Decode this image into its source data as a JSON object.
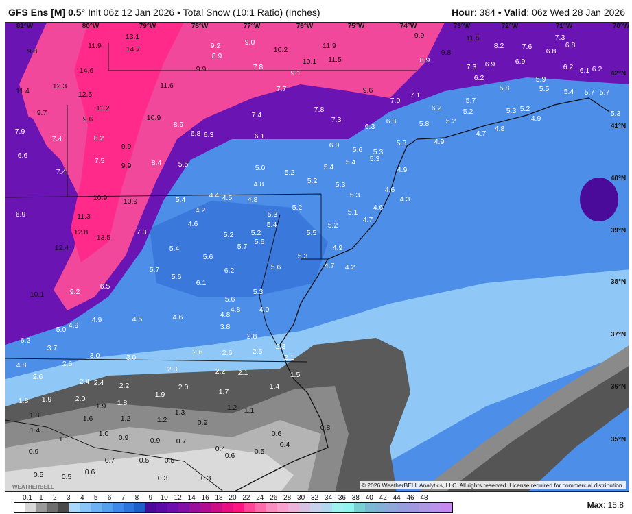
{
  "header": {
    "model": "GFS Ens [M] 0.5",
    "degree": "°",
    "init": " Init 06z 12 Jan 2026 • Total Snow (10:1 Ratio) (Inches)",
    "hour_label": "Hour",
    "hour_value": ": 384 • ",
    "valid_label": "Valid",
    "valid_value": ": 06z Wed 28 Jan 2026"
  },
  "map": {
    "longitudes": [
      "81°W",
      "80°W",
      "79°W",
      "78°W",
      "77°W",
      "76°W",
      "75°W",
      "74°W",
      "73°W",
      "72°W",
      "71°W",
      "70°W"
    ],
    "latitudes": [
      "42°N",
      "41°N",
      "40°N",
      "39°N",
      "38°N",
      "37°N",
      "36°N",
      "35°N"
    ],
    "snow_values": [
      "9.8",
      "11.9",
      "13.1",
      "14.7",
      "9.2",
      "8.9",
      "9.0",
      "10.2",
      "11.9",
      "11.5",
      "9.9",
      "11.5",
      "9.8",
      "8.9",
      "8.2",
      "7.6",
      "7.3",
      "6.8",
      "6.8",
      "6.9",
      "7.3",
      "6.9",
      "6.2",
      "6.1",
      "6.2",
      "14.6",
      "9.9",
      "7.8",
      "9.1",
      "10.1",
      "11.4",
      "12.3",
      "12.5",
      "11.6",
      "7.7",
      "9.6",
      "7.0",
      "7.1",
      "6.2",
      "5.8",
      "5.9",
      "5.5",
      "5.4",
      "5.7",
      "5.7",
      "5.7",
      "5.3",
      "9.7",
      "11.2",
      "9.6",
      "10.9",
      "8.9",
      "7.4",
      "7.8",
      "7.3",
      "6.2",
      "5.2",
      "5.2",
      "5.3",
      "5.2",
      "4.9",
      "5.8",
      "4.8",
      "4.7",
      "4.9",
      "6.3",
      "6.3",
      "7.9",
      "7.4",
      "8.2",
      "6.8",
      "6.3",
      "6.1",
      "6.0",
      "5.6",
      "5.3",
      "5.3",
      "5.4",
      "5.3",
      "6.6",
      "7.5",
      "9.9",
      "9.9",
      "8.4",
      "5.5",
      "7.4",
      "5.0",
      "5.2",
      "5.4",
      "4.9",
      "5.2",
      "5.3",
      "4.8",
      "10.9",
      "10.9",
      "5.4",
      "4.4",
      "4.5",
      "4.8",
      "5.3",
      "4.6",
      "4.3",
      "4.6",
      "5.2",
      "6.9",
      "11.3",
      "4.2",
      "5.3",
      "5.4",
      "5.1",
      "4.7",
      "5.2",
      "4.6",
      "12.8",
      "13.5",
      "7.3",
      "5.2",
      "5.2",
      "5.5",
      "5.6",
      "5.7",
      "12.4",
      "5.4",
      "5.6",
      "4.9",
      "5.3",
      "5.6",
      "4.7",
      "4.2",
      "6.2",
      "5.7",
      "5.6",
      "6.1",
      "6.5",
      "5.3",
      "10.1",
      "9.2",
      "5.6",
      "4.8",
      "4.0",
      "4.6",
      "4.8",
      "4.5",
      "4.9",
      "4.9",
      "5.0",
      "3.8",
      "2.8",
      "6.2",
      "3.7",
      "2.6",
      "2.6",
      "2.5",
      "2.3",
      "2.1",
      "3.0",
      "3.0",
      "2.6",
      "2.3",
      "2.2",
      "2.1",
      "4.8",
      "2.6",
      "2.4",
      "2.4",
      "2.2",
      "2.0",
      "1.9",
      "1.7",
      "1.5",
      "1.4",
      "1.8",
      "1.9",
      "2.0",
      "1.9",
      "1.8",
      "1.3",
      "1.2",
      "1.1",
      "1.8",
      "1.6",
      "1.2",
      "1.2",
      "0.9",
      "1.4",
      "1.0",
      "0.9",
      "1.1",
      "0.9",
      "0.7",
      "0.6",
      "0.4",
      "0.8",
      "0.9",
      "0.7",
      "0.5",
      "0.5",
      "0.4",
      "0.6",
      "0.5",
      "0.6",
      "0.5",
      "0.3",
      "0.3",
      "0.5"
    ],
    "colors": {
      "pink": "#f2489c",
      "hot_pink": "#ff2a8a",
      "purple": "#6a14b4",
      "deep_purple": "#4a0b9a",
      "blue": "#4c8ee8",
      "mid_blue": "#3a78dc",
      "light_blue": "#8fc8f6",
      "dark_gray": "#5a5a5a",
      "gray": "#8a8a8a",
      "light_gray": "#b4b4b4",
      "pale_gray": "#dadada"
    },
    "logo": "WEATHERBELL",
    "copyright": "© 2026 WeatherBELL Analytics, LLC. All rights reserved. License required for commercial distribution."
  },
  "legend": {
    "labels": [
      "0.1",
      "1",
      "2",
      "3",
      "4",
      "5",
      "6",
      "7",
      "8",
      "9",
      "10",
      "12",
      "14",
      "16",
      "18",
      "20",
      "22",
      "24",
      "26",
      "28",
      "30",
      "32",
      "34",
      "36",
      "38",
      "40",
      "42",
      "44",
      "46",
      "48"
    ],
    "colors": [
      "#ffffff",
      "#d8d8d8",
      "#9a9a9a",
      "#6e6e6e",
      "#4a4a4a",
      "#a8d8fb",
      "#8cc6f8",
      "#6fb2f4",
      "#549ff0",
      "#3d8aea",
      "#2c74de",
      "#1f5fcc",
      "#4b0a9a",
      "#5a0ca8",
      "#6d0fae",
      "#820fa8",
      "#9a0f9c",
      "#b10e90",
      "#cc0e85",
      "#e60e80",
      "#ff1483",
      "#ff4597",
      "#ff6aab",
      "#f98fc0",
      "#f5a3cc",
      "#eab5d8",
      "#d8c2e2",
      "#c8d2ec",
      "#b2d7f0",
      "#9ff2ef",
      "#8ff5ee",
      "#78cfd6",
      "#7cb8d2",
      "#84b0d6",
      "#8ea8d8",
      "#969fdc",
      "#a298de",
      "#ae98e2",
      "#ba94e8",
      "#c68aee"
    ]
  },
  "max": {
    "label": "Max",
    "value": ": 15.8"
  }
}
